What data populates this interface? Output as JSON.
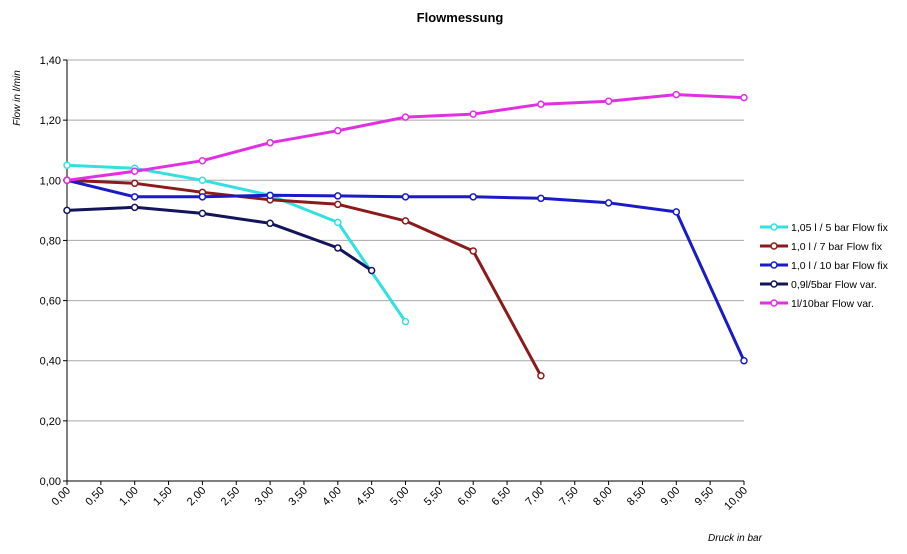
{
  "chart_data": {
    "type": "line",
    "title": "Flowmessung",
    "xlabel": "Druck in bar",
    "ylabel": "Flow in l/min",
    "xlim": [
      0,
      10
    ],
    "ylim": [
      0,
      1.4
    ],
    "x_ticks": [
      "0,00",
      "0,50",
      "1,00",
      "1,50",
      "2,00",
      "2,50",
      "3,00",
      "3,50",
      "4,00",
      "4,50",
      "5,00",
      "5,50",
      "6,00",
      "6,50",
      "7,00",
      "7,50",
      "8,00",
      "8,50",
      "9,00",
      "9,50",
      "10,00"
    ],
    "y_ticks": [
      "0,00",
      "0,20",
      "0,40",
      "0,60",
      "0,80",
      "1,00",
      "1,20",
      "1,40"
    ],
    "grid": "horizontal",
    "legend_position": "right",
    "series": [
      {
        "name": "1,05 l / 5 bar Flow fix",
        "color": "#33e0e0",
        "x": [
          0,
          1,
          2,
          3,
          4,
          5
        ],
        "y": [
          1.05,
          1.04,
          1.0,
          0.95,
          0.86,
          0.53
        ]
      },
      {
        "name": "1,0 l / 7 bar Flow fix",
        "color": "#8b1a1a",
        "x": [
          0,
          1,
          2,
          3,
          4,
          5,
          6,
          7
        ],
        "y": [
          1.0,
          0.99,
          0.96,
          0.935,
          0.92,
          0.865,
          0.765,
          0.35
        ]
      },
      {
        "name": "1,0 l / 10 bar Flow fix",
        "color": "#1a1ac8",
        "x": [
          0,
          1,
          2,
          3,
          4,
          5,
          6,
          7,
          8,
          9,
          10
        ],
        "y": [
          1.0,
          0.945,
          0.945,
          0.95,
          0.948,
          0.945,
          0.945,
          0.94,
          0.925,
          0.895,
          0.4
        ]
      },
      {
        "name": "0,9l/5bar Flow var.",
        "color": "#14145a",
        "x": [
          0,
          1,
          2,
          3,
          4,
          4.5
        ],
        "y": [
          0.9,
          0.91,
          0.89,
          0.857,
          0.775,
          0.7
        ]
      },
      {
        "name": "1l/10bar Flow var.",
        "color": "#e030e0",
        "x": [
          0,
          1,
          2,
          3,
          4,
          5,
          6,
          7,
          8,
          9,
          10
        ],
        "y": [
          1.0,
          1.03,
          1.065,
          1.125,
          1.165,
          1.21,
          1.22,
          1.253,
          1.263,
          1.285,
          1.275
        ]
      }
    ]
  }
}
